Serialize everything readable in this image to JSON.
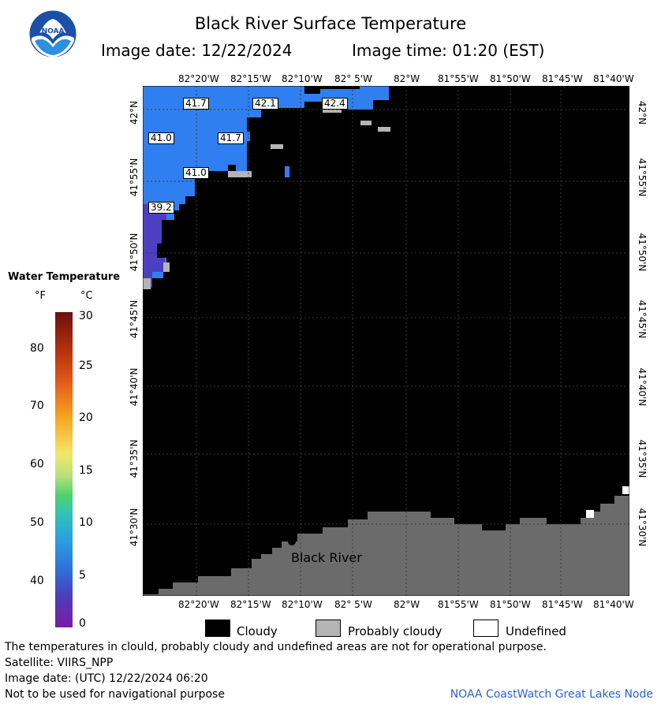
{
  "header": {
    "title": "Black River Surface Temperature",
    "image_date_label": "Image date: 12/22/2024",
    "image_time_label": "Image time: 01:20 (EST)"
  },
  "map": {
    "lon_ticks": [
      "82°20'W",
      "82°15'W",
      "82°10'W",
      "82° 5'W",
      "82°W",
      "81°55'W",
      "81°50'W",
      "81°45'W",
      "81°40'W"
    ],
    "lat_ticks": [
      "42°N",
      "41°55'N",
      "41°50'N",
      "41°45'N",
      "41°40'N",
      "41°35'N",
      "41°30'N"
    ],
    "temperature_labels": [
      "41.7",
      "42.1",
      "42.4",
      "41.0",
      "41.7",
      "41.0",
      "39.2"
    ],
    "place_label": "Black River",
    "colors": {
      "cloud": "#000000",
      "land": "#6b6b6b",
      "probably_cloudy": "#b4b4b4",
      "water_warm": "#2f7ff0",
      "water_cold": "#4c3fc2"
    }
  },
  "colorbar": {
    "title": "Water Temperature",
    "unit_f": "°F",
    "unit_c": "°C",
    "f_ticks": [
      "80",
      "70",
      "60",
      "50",
      "40"
    ],
    "c_ticks": [
      "30",
      "25",
      "20",
      "15",
      "10",
      "5",
      "0"
    ]
  },
  "legend": {
    "cloudy": "Cloudy",
    "probably_cloudy": "Probably cloudy",
    "undefined": "Undefined"
  },
  "footer": {
    "disclaimer": "The temperatures in clould, probably cloudy and undefined areas are not for operational purpose.",
    "satellite": "Satellite: VIIRS_NPP",
    "utc_date": "Image date: (UTC) 12/22/2024  06:20",
    "nav_warning": "Not to be used for navigational purpose",
    "credit": "NOAA CoastWatch Great Lakes Node"
  },
  "logo_text": "NOAA"
}
